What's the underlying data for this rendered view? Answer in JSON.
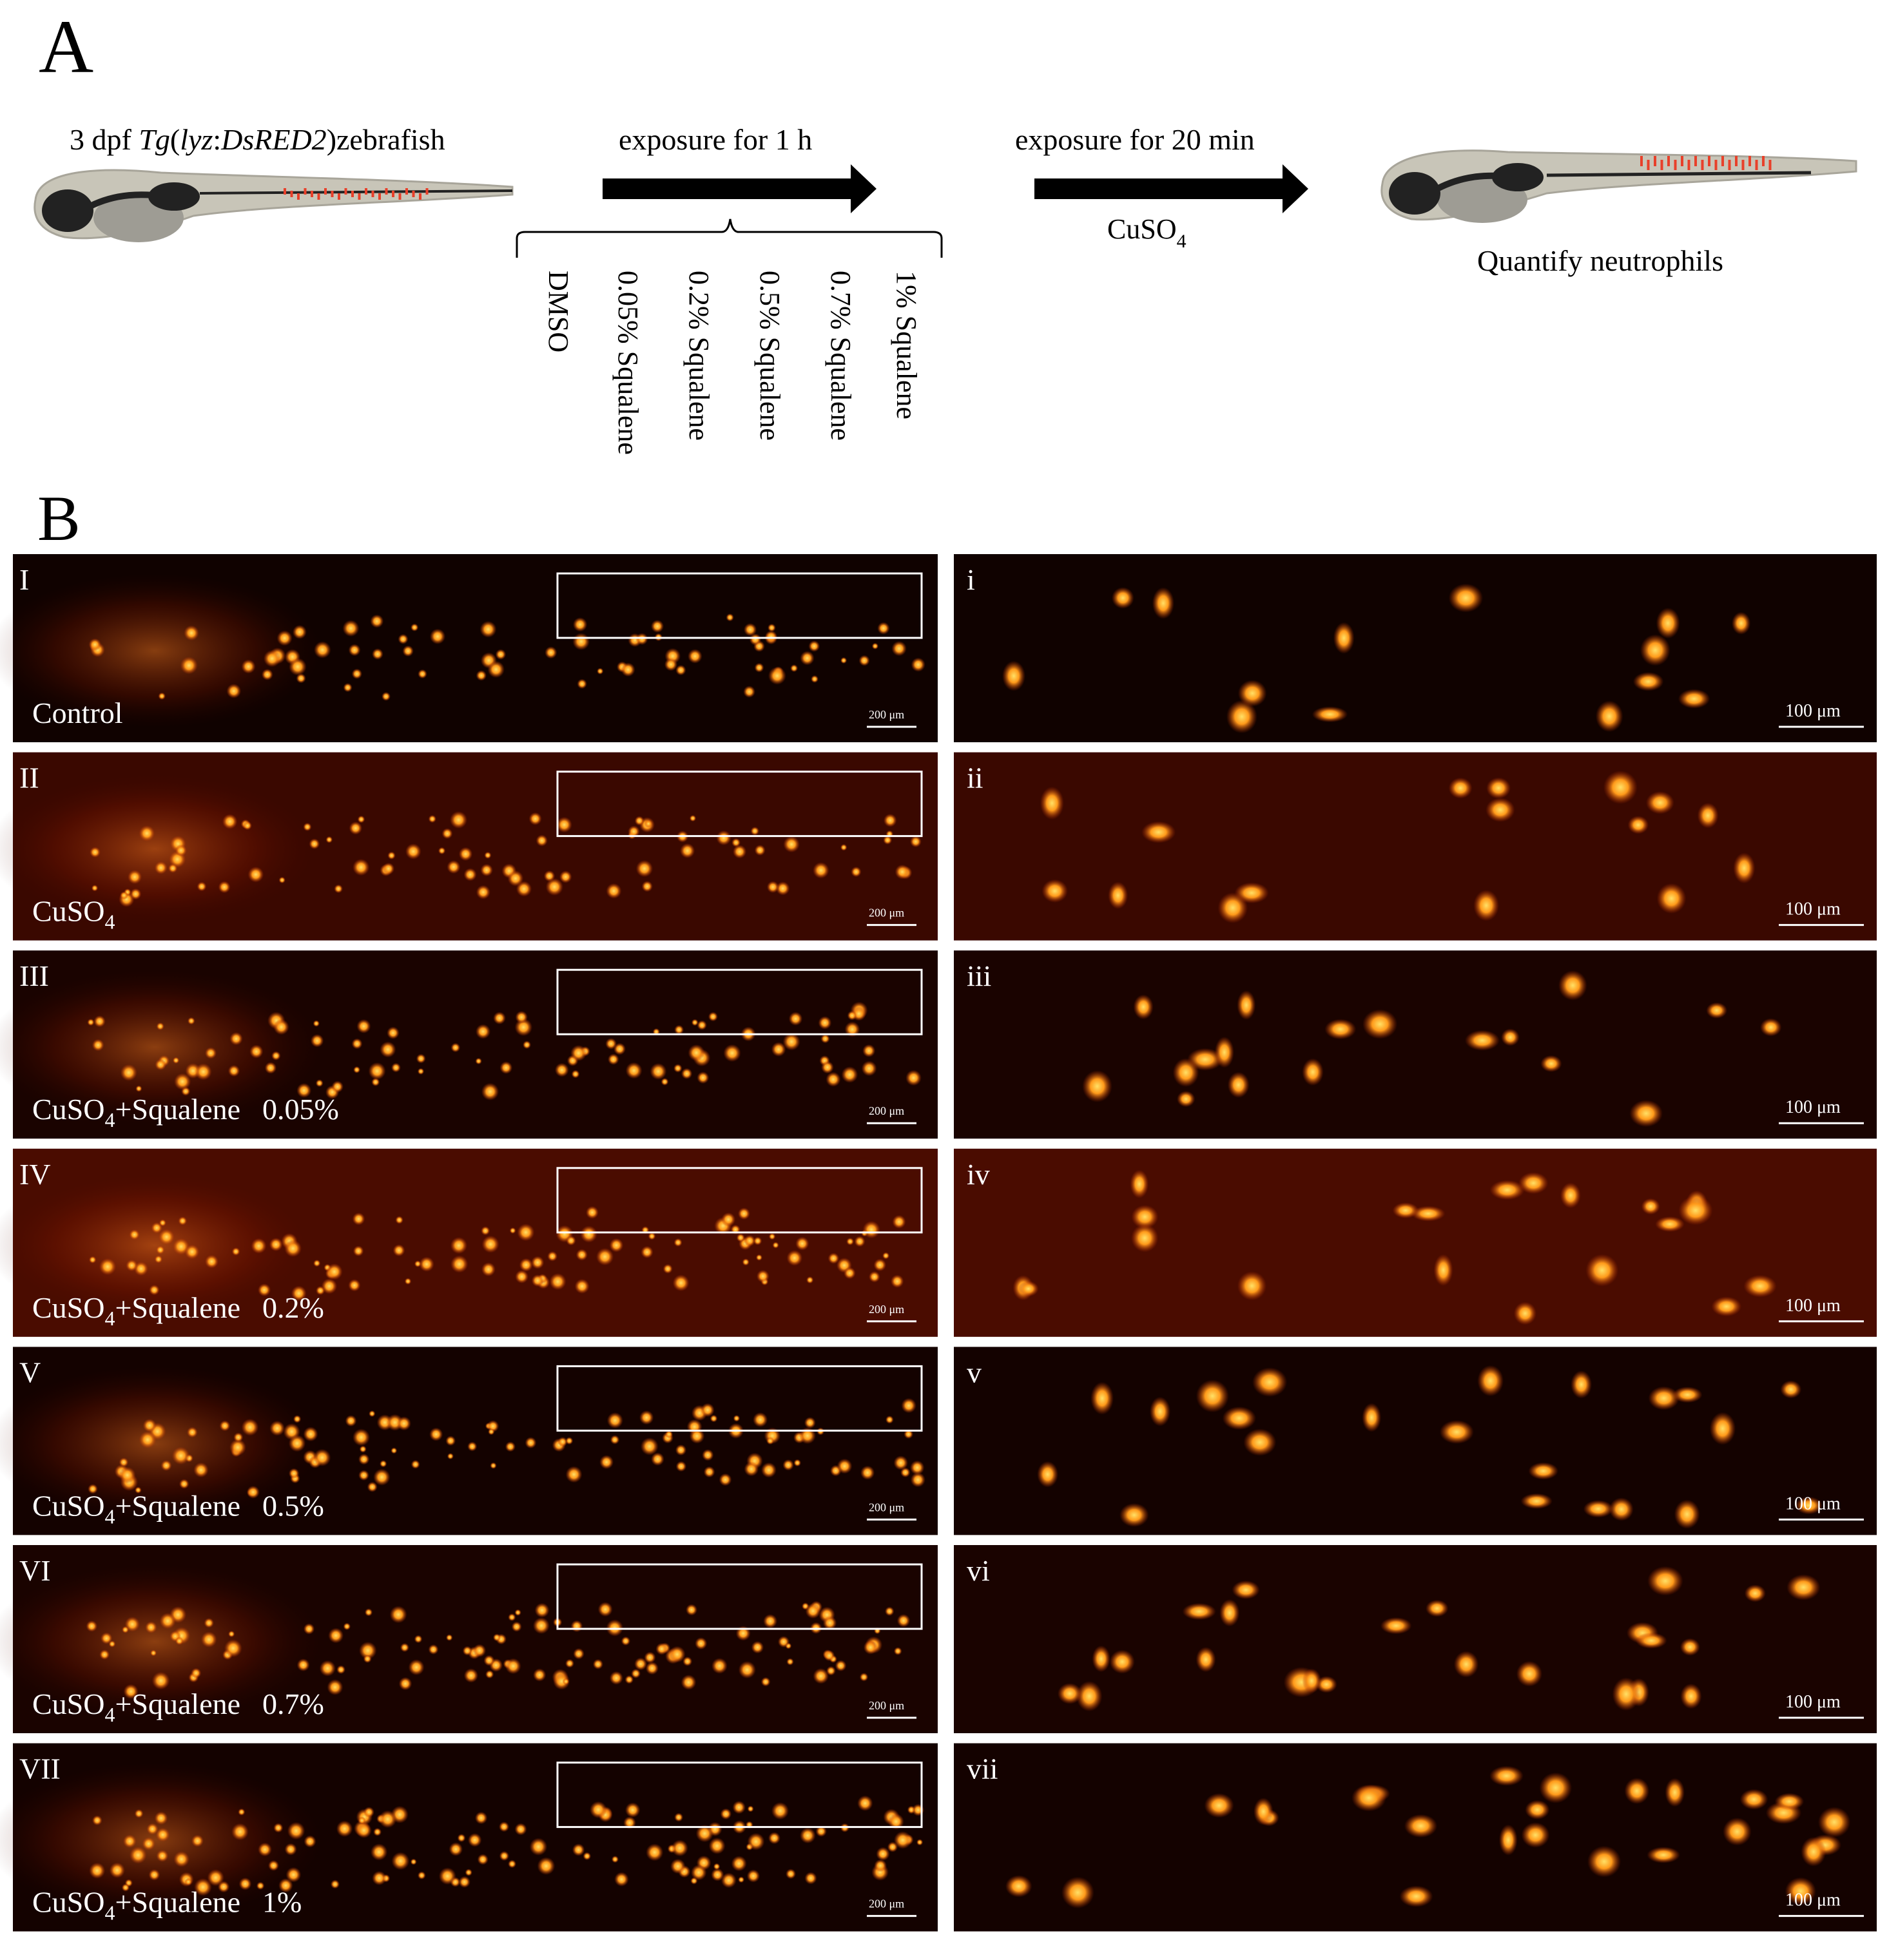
{
  "panel_a": {
    "letter": "A",
    "zebrafish_label": {
      "prefix": "3 dpf  ",
      "italic": "Tg",
      "p1": "(",
      "italic2": "lyz",
      "p2": ":",
      "italic3": "DsRED2",
      "suffix": ")zebrafish"
    },
    "step1_label": "exposure  for  1  h",
    "step2_label": "exposure  for  20 min",
    "step2_chem": "CuSO",
    "step2_chem_sub": "4",
    "result_label": "Quantify  neutrophils",
    "groups": [
      "DMSO",
      "0.05% Squalene",
      "0.2% Squalene",
      "0.5% Squalene",
      "0.7% Squalene",
      "1% Squalene"
    ],
    "colors": {
      "fish_body": "#c8c5b8",
      "fish_dark": "#222222",
      "fish_mid": "#9e9c94",
      "neutrophil": "#e8402a"
    }
  },
  "panel_b": {
    "letter": "B",
    "scale_left": "200 μm",
    "scale_right": "100 μm",
    "rows": [
      {
        "roman": "I",
        "zoom": "i",
        "cond": "Control",
        "sub": "",
        "rest": "",
        "pct": ""
      },
      {
        "roman": "II",
        "zoom": "ii",
        "cond": "CuSO",
        "sub": "4",
        "rest": "",
        "pct": ""
      },
      {
        "roman": "III",
        "zoom": "iii",
        "cond": "CuSO",
        "sub": "4",
        "rest": "+Squalene",
        "pct": "0.05%"
      },
      {
        "roman": "IV",
        "zoom": "iv",
        "cond": "CuSO",
        "sub": "4",
        "rest": "+Squalene",
        "pct": "0.2%"
      },
      {
        "roman": "V",
        "zoom": "v",
        "cond": "CuSO",
        "sub": "4",
        "rest": "+Squalene",
        "pct": "0.5%"
      },
      {
        "roman": "VI",
        "zoom": "vi",
        "cond": "CuSO",
        "sub": "4",
        "rest": "+Squalene",
        "pct": "0.7%"
      },
      {
        "roman": "VII",
        "zoom": "vii",
        "cond": "CuSO",
        "sub": "4",
        "rest": "+Squalene",
        "pct": "1%"
      }
    ]
  }
}
